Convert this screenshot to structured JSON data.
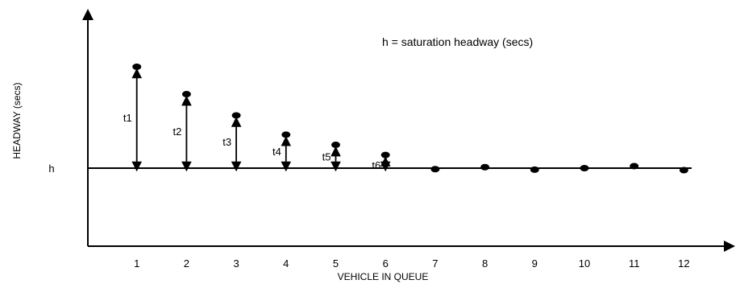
{
  "note": "h = saturation headway (secs)",
  "chart_data": {
    "type": "scatter",
    "title": "",
    "xlabel": "VEHICLE IN QUEUE",
    "ylabel": "HEADWAY (secs)",
    "y_reference_label": "h",
    "categories": [
      "1",
      "2",
      "3",
      "4",
      "5",
      "6",
      "7",
      "8",
      "9",
      "10",
      "11",
      "12"
    ],
    "points": [
      {
        "vehicle": 1,
        "above_h": 1.0,
        "label": "t1"
      },
      {
        "vehicle": 2,
        "above_h": 0.73,
        "label": "t2"
      },
      {
        "vehicle": 3,
        "above_h": 0.52,
        "label": "t3"
      },
      {
        "vehicle": 4,
        "above_h": 0.33,
        "label": "t4"
      },
      {
        "vehicle": 5,
        "above_h": 0.23,
        "label": "t5"
      },
      {
        "vehicle": 6,
        "above_h": 0.13,
        "label": "t6"
      },
      {
        "vehicle": 7,
        "above_h": -0.01,
        "label": ""
      },
      {
        "vehicle": 8,
        "above_h": 0.01,
        "label": ""
      },
      {
        "vehicle": 9,
        "above_h": -0.015,
        "label": ""
      },
      {
        "vehicle": 10,
        "above_h": 0.0,
        "label": ""
      },
      {
        "vehicle": 11,
        "above_h": 0.02,
        "label": ""
      },
      {
        "vehicle": 12,
        "above_h": -0.02,
        "label": ""
      }
    ]
  }
}
